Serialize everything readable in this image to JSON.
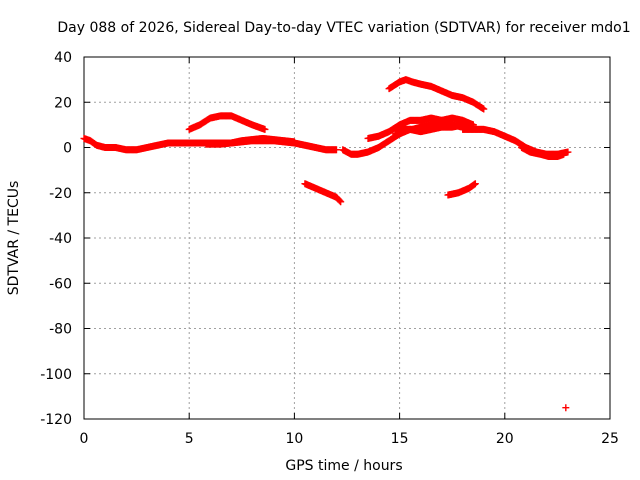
{
  "chart_data": {
    "type": "scatter",
    "title": "Day 088 of 2026, Sidereal Day-to-day VTEC variation (SDTVAR) for receiver mdo1",
    "xlabel": "GPS time / hours",
    "ylabel": "SDTVAR / TECUs",
    "xlim": [
      0,
      25
    ],
    "ylim": [
      -120,
      40
    ],
    "xticks": [
      0,
      5,
      10,
      15,
      20,
      25
    ],
    "yticks": [
      -120,
      -100,
      -80,
      -60,
      -40,
      -20,
      0,
      20,
      40
    ],
    "grid": true,
    "marker": "+",
    "color": "#ff0000",
    "series": [
      {
        "name": "s1",
        "points": [
          [
            0,
            4
          ],
          [
            0.3,
            3
          ],
          [
            0.6,
            1
          ],
          [
            1,
            0
          ],
          [
            1.5,
            0
          ],
          [
            2,
            -1
          ],
          [
            2.5,
            -1
          ],
          [
            3,
            0
          ],
          [
            3.5,
            1
          ],
          [
            4,
            2
          ],
          [
            5,
            2
          ],
          [
            6,
            2
          ],
          [
            7,
            2
          ],
          [
            8,
            3
          ],
          [
            9,
            3
          ],
          [
            10,
            2
          ],
          [
            10.5,
            1
          ],
          [
            11,
            0
          ],
          [
            11.5,
            -1
          ],
          [
            12,
            -1
          ]
        ]
      },
      {
        "name": "s2",
        "points": [
          [
            5,
            8
          ],
          [
            5.5,
            10
          ],
          [
            6,
            13
          ],
          [
            6.5,
            14
          ],
          [
            7,
            14
          ],
          [
            7.5,
            12
          ],
          [
            8,
            10
          ],
          [
            8.6,
            8
          ]
        ]
      },
      {
        "name": "s3",
        "points": [
          [
            5.8,
            1.5
          ],
          [
            6.5,
            1.5
          ],
          [
            7,
            2
          ],
          [
            7.5,
            3
          ],
          [
            8,
            3.5
          ],
          [
            8.5,
            4
          ],
          [
            9,
            3.5
          ],
          [
            9.5,
            3
          ],
          [
            10,
            2.5
          ]
        ]
      },
      {
        "name": "s4",
        "points": [
          [
            10.5,
            -16
          ],
          [
            11,
            -18
          ],
          [
            11.5,
            -20
          ],
          [
            12,
            -22
          ],
          [
            12.2,
            -24
          ]
        ]
      },
      {
        "name": "s5",
        "points": [
          [
            12.3,
            -1
          ],
          [
            12.7,
            -3
          ],
          [
            13,
            -3
          ],
          [
            13.5,
            -2
          ],
          [
            14,
            0
          ],
          [
            14.5,
            3
          ],
          [
            15,
            6
          ],
          [
            15.5,
            8
          ],
          [
            16,
            7
          ],
          [
            16.5,
            8
          ],
          [
            17,
            9
          ],
          [
            17.5,
            9
          ],
          [
            18,
            10
          ],
          [
            18.5,
            10
          ]
        ]
      },
      {
        "name": "s6",
        "points": [
          [
            13.5,
            4
          ],
          [
            14,
            5
          ],
          [
            14.5,
            7
          ],
          [
            15,
            10
          ],
          [
            15.5,
            12
          ],
          [
            16,
            12
          ],
          [
            16.5,
            13
          ],
          [
            17,
            12
          ],
          [
            17.5,
            13
          ],
          [
            18,
            12
          ],
          [
            18.5,
            10
          ]
        ]
      },
      {
        "name": "s7",
        "points": [
          [
            14.8,
            6
          ],
          [
            15.2,
            8
          ],
          [
            15.6,
            8
          ],
          [
            16,
            9
          ],
          [
            16.5,
            10
          ],
          [
            17,
            10
          ],
          [
            17.5,
            10
          ],
          [
            18,
            9
          ],
          [
            18.5,
            9
          ]
        ]
      },
      {
        "name": "s8",
        "points": [
          [
            14.5,
            26
          ],
          [
            15,
            29
          ],
          [
            15.3,
            30
          ],
          [
            15.6,
            29
          ],
          [
            16,
            28
          ],
          [
            16.5,
            27
          ],
          [
            17,
            25
          ],
          [
            17.5,
            23
          ],
          [
            18,
            22
          ],
          [
            18.5,
            20
          ],
          [
            19,
            17
          ]
        ]
      },
      {
        "name": "s9",
        "points": [
          [
            18,
            8
          ],
          [
            18.5,
            8
          ],
          [
            19,
            8
          ],
          [
            19.5,
            7
          ],
          [
            20,
            5
          ],
          [
            20.5,
            3
          ],
          [
            21,
            0
          ],
          [
            21.5,
            -2
          ],
          [
            22,
            -3
          ],
          [
            22.5,
            -3
          ],
          [
            23,
            -2
          ]
        ]
      },
      {
        "name": "s10",
        "points": [
          [
            20.8,
            0
          ],
          [
            21.2,
            -2
          ],
          [
            21.7,
            -3
          ],
          [
            22.1,
            -4
          ],
          [
            22.5,
            -4
          ],
          [
            22.8,
            -3
          ]
        ]
      },
      {
        "name": "s11",
        "points": [
          [
            17.3,
            -21
          ],
          [
            17.8,
            -20
          ],
          [
            18.3,
            -18
          ],
          [
            18.6,
            -16
          ]
        ]
      },
      {
        "name": "s12",
        "points": [
          [
            22.9,
            -115
          ]
        ]
      }
    ]
  }
}
